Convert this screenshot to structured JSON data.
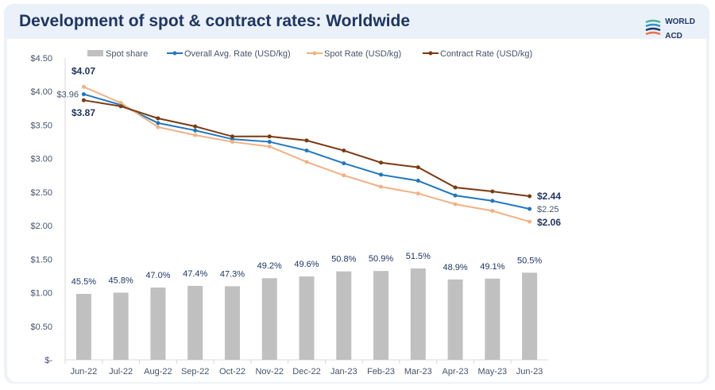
{
  "title": "Development of spot & contract rates: Worldwide",
  "logo": {
    "line1": "WORLD",
    "line2": "ACD"
  },
  "chart_data": {
    "type": "bar+line",
    "title": "Development of spot & contract rates: Worldwide",
    "categories": [
      "Jun-22",
      "Jul-22",
      "Aug-22",
      "Sep-22",
      "Oct-22",
      "Nov-22",
      "Dec-22",
      "Jan-23",
      "Feb-23",
      "Mar-23",
      "Apr-23",
      "May-23",
      "Jun-23"
    ],
    "yticks": [
      "$-",
      "$0.50",
      "$1.00",
      "$1.50",
      "$2.00",
      "$2.50",
      "$3.00",
      "$3.50",
      "$4.00",
      "$4.50"
    ],
    "ylim": [
      0,
      4.5
    ],
    "ylim_secondary": [
      30,
      101
    ],
    "legend_position": "top",
    "bars": {
      "name": "Spot share",
      "color": "#c0c0c0",
      "values": [
        45.5,
        45.8,
        47.0,
        47.4,
        47.3,
        49.2,
        49.6,
        50.8,
        50.9,
        51.5,
        48.9,
        49.1,
        50.5
      ],
      "labels": [
        "45.5%",
        "45.8%",
        "47.0%",
        "47.4%",
        "47.3%",
        "49.2%",
        "49.6%",
        "50.8%",
        "50.9%",
        "51.5%",
        "48.9%",
        "49.1%",
        "50.5%"
      ]
    },
    "series": [
      {
        "name": "Overall Avg. Rate (USD/kg)",
        "color": "#1f77c0",
        "values": [
          3.96,
          3.8,
          3.53,
          3.42,
          3.29,
          3.25,
          3.12,
          2.93,
          2.76,
          2.67,
          2.45,
          2.37,
          2.25
        ],
        "start_label": "$3.96",
        "end_label": "$2.25"
      },
      {
        "name": "Spot Rate (USD/kg)",
        "color": "#f2b183",
        "values": [
          4.07,
          3.83,
          3.47,
          3.35,
          3.25,
          3.18,
          2.95,
          2.75,
          2.58,
          2.48,
          2.32,
          2.22,
          2.06
        ],
        "start_label": "$4.07",
        "end_label": "$2.06"
      },
      {
        "name": "Contract Rate (USD/kg)",
        "color": "#7b3a12",
        "values": [
          3.87,
          3.78,
          3.6,
          3.48,
          3.33,
          3.33,
          3.27,
          3.12,
          2.94,
          2.87,
          2.57,
          2.51,
          2.44
        ],
        "start_label": "$3.87",
        "end_label": "$2.44"
      }
    ]
  }
}
